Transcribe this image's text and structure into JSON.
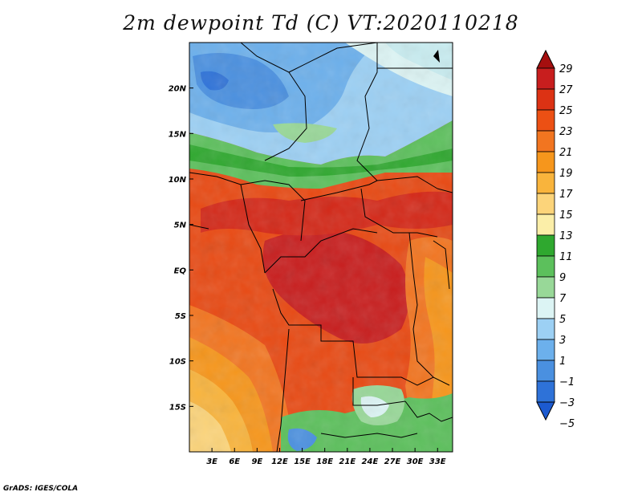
{
  "title": "2m dewpoint Td (C) VT:2020110218",
  "credit": "GrADS: IGES/COLA",
  "map": {
    "lat_labels": [
      "20N",
      "15N",
      "10N",
      "5N",
      "EQ",
      "5S",
      "10S",
      "15S"
    ],
    "lat_values": [
      20,
      15,
      10,
      5,
      0,
      -5,
      -10,
      -15
    ],
    "lon_labels": [
      "3E",
      "6E",
      "9E",
      "12E",
      "15E",
      "18E",
      "21E",
      "24E",
      "27E",
      "30E",
      "33E"
    ],
    "lon_values": [
      3,
      6,
      9,
      12,
      15,
      18,
      21,
      24,
      27,
      30,
      33
    ],
    "lon_range": [
      0,
      35
    ],
    "lat_range": [
      -20,
      25
    ]
  },
  "colorbar": {
    "levels": [
      29,
      27,
      25,
      23,
      21,
      19,
      17,
      15,
      13,
      11,
      9,
      7,
      5,
      3,
      1,
      -1,
      -3,
      -5
    ],
    "labels": [
      "29",
      "27",
      "25",
      "23",
      "21",
      "19",
      "17",
      "15",
      "13",
      "11",
      "9",
      "7",
      "5",
      "3",
      "1",
      "−1",
      "−3",
      "−5"
    ],
    "colors": [
      "#a50f0f",
      "#c81e1e",
      "#dc3214",
      "#ec5014",
      "#f27520",
      "#f6961c",
      "#f9b43c",
      "#fcd47a",
      "#fbeea8",
      "#2fa82f",
      "#5cc05c",
      "#98d898",
      "#dcf4f4",
      "#9cd0f4",
      "#6cb0ec",
      "#4a90e0",
      "#2e72d8",
      "#1c5ad0"
    ]
  }
}
